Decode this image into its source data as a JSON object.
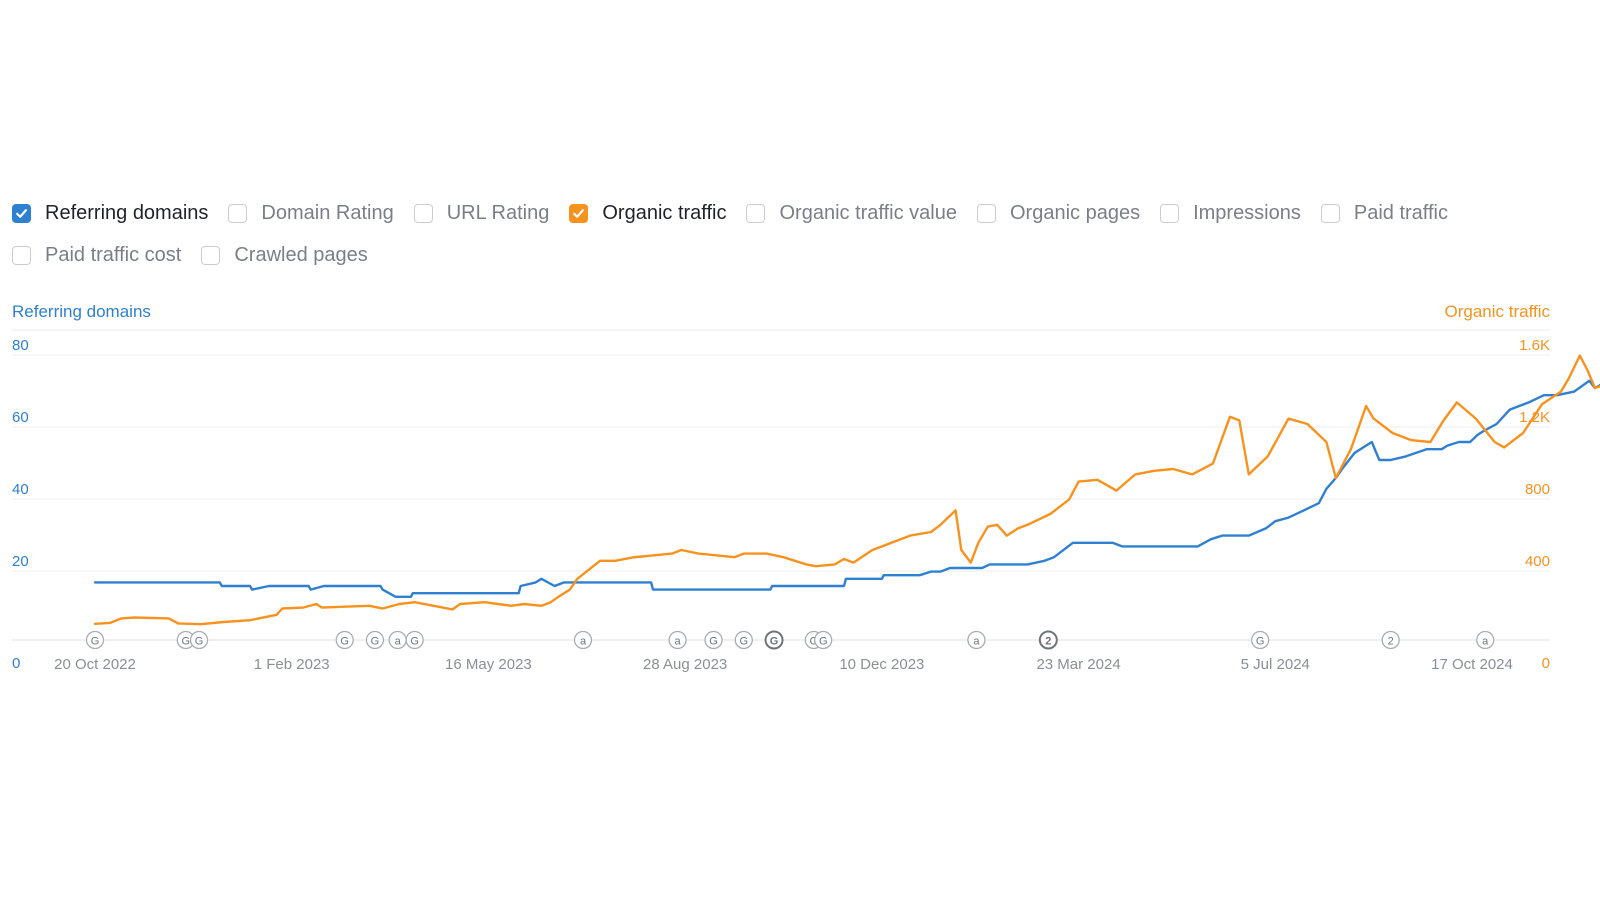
{
  "metric_toggles": [
    {
      "label": "Referring domains",
      "checked": true,
      "color": "#2f80d1"
    },
    {
      "label": "Domain Rating",
      "checked": false
    },
    {
      "label": "URL Rating",
      "checked": false
    },
    {
      "label": "Organic traffic",
      "checked": true,
      "color": "#f7921e"
    },
    {
      "label": "Organic traffic value",
      "checked": false
    },
    {
      "label": "Organic pages",
      "checked": false
    },
    {
      "label": "Impressions",
      "checked": false
    },
    {
      "label": "Paid traffic",
      "checked": false
    },
    {
      "label": "Paid traffic cost",
      "checked": false
    },
    {
      "label": "Crawled pages",
      "checked": false
    }
  ],
  "chart_data": {
    "type": "line",
    "x_labels": [
      "20 Oct 2022",
      "1 Feb 2023",
      "16 May 2023",
      "28 Aug 2023",
      "10 Dec 2023",
      "23 Mar 2024",
      "5 Jul 2024",
      "17 Oct 2024"
    ],
    "y_left": {
      "title": "Referring domains",
      "ticks": [
        "0",
        "20",
        "40",
        "60",
        "80"
      ],
      "range": [
        0,
        80
      ],
      "color": "#2f80d1"
    },
    "y_right": {
      "title": "Organic traffic",
      "ticks": [
        "0",
        "400",
        "800",
        "1.2K",
        "1.6K"
      ],
      "range": [
        0,
        1600
      ],
      "color": "#f7921e"
    },
    "grid": true,
    "series": [
      {
        "name": "Referring domains",
        "axis": "left",
        "color": "#2f80d1",
        "points": [
          [
            "2022-10-20",
            16
          ],
          [
            "2022-12-25",
            16
          ],
          [
            "2022-12-26",
            15
          ],
          [
            "2023-01-10",
            15
          ],
          [
            "2023-01-11",
            14
          ],
          [
            "2023-01-20",
            15
          ],
          [
            "2023-02-10",
            15
          ],
          [
            "2023-02-11",
            14
          ],
          [
            "2023-02-18",
            15
          ],
          [
            "2023-03-20",
            15
          ],
          [
            "2023-03-21",
            14
          ],
          [
            "2023-03-28",
            12
          ],
          [
            "2023-04-05",
            12
          ],
          [
            "2023-04-06",
            13
          ],
          [
            "2023-05-10",
            13
          ],
          [
            "2023-06-01",
            13
          ],
          [
            "2023-06-02",
            15
          ],
          [
            "2023-06-10",
            16
          ],
          [
            "2023-06-13",
            17
          ],
          [
            "2023-06-20",
            15
          ],
          [
            "2023-06-25",
            16
          ],
          [
            "2023-08-10",
            16
          ],
          [
            "2023-08-11",
            14
          ],
          [
            "2023-10-12",
            14
          ],
          [
            "2023-10-13",
            15
          ],
          [
            "2023-11-20",
            15
          ],
          [
            "2023-11-21",
            17
          ],
          [
            "2023-12-10",
            17
          ],
          [
            "2023-12-11",
            18
          ],
          [
            "2023-12-30",
            18
          ],
          [
            "2024-01-05",
            19
          ],
          [
            "2024-01-10",
            19
          ],
          [
            "2024-01-15",
            20
          ],
          [
            "2024-02-01",
            20
          ],
          [
            "2024-02-05",
            21
          ],
          [
            "2024-02-25",
            21
          ],
          [
            "2024-03-05",
            22
          ],
          [
            "2024-03-10",
            23
          ],
          [
            "2024-03-20",
            27
          ],
          [
            "2024-04-10",
            27
          ],
          [
            "2024-04-15",
            26
          ],
          [
            "2024-04-25",
            26
          ],
          [
            "2024-04-26",
            26
          ],
          [
            "2024-05-25",
            26
          ],
          [
            "2024-06-01",
            28
          ],
          [
            "2024-06-07",
            29
          ],
          [
            "2024-06-21",
            29
          ],
          [
            "2024-06-30",
            31
          ],
          [
            "2024-07-05",
            33
          ],
          [
            "2024-07-12",
            34
          ],
          [
            "2024-07-20",
            36
          ],
          [
            "2024-07-28",
            38
          ],
          [
            "2024-08-01",
            42
          ],
          [
            "2024-08-06",
            45
          ],
          [
            "2024-08-10",
            48
          ],
          [
            "2024-08-16",
            52
          ],
          [
            "2024-08-22",
            54
          ],
          [
            "2024-08-25",
            55
          ],
          [
            "2024-08-29",
            50
          ],
          [
            "2024-09-04",
            50
          ],
          [
            "2024-09-12",
            51
          ],
          [
            "2024-09-23",
            53
          ],
          [
            "2024-10-01",
            53
          ],
          [
            "2024-10-04",
            54
          ],
          [
            "2024-10-10",
            55
          ],
          [
            "2024-10-16",
            55
          ],
          [
            "2024-10-20",
            57
          ],
          [
            "2024-10-23",
            58
          ],
          [
            "2024-10-30",
            60
          ],
          [
            "2024-11-06",
            64
          ],
          [
            "2024-11-16",
            66
          ],
          [
            "2024-11-24",
            68
          ],
          [
            "2024-12-01",
            68
          ],
          [
            "2024-12-10",
            69
          ],
          [
            "2024-12-18",
            72
          ],
          [
            "2024-12-21",
            70
          ],
          [
            "2024-12-28",
            72
          ],
          [
            "2025-01-05",
            73
          ]
        ]
      },
      {
        "name": "Organic traffic",
        "axis": "right",
        "color": "#f7921e",
        "points": [
          [
            "2022-10-20",
            90
          ],
          [
            "2022-10-28",
            95
          ],
          [
            "2022-11-03",
            120
          ],
          [
            "2022-11-10",
            125
          ],
          [
            "2022-11-28",
            120
          ],
          [
            "2022-12-03",
            92
          ],
          [
            "2022-12-15",
            88
          ],
          [
            "2022-12-27",
            100
          ],
          [
            "2023-01-10",
            110
          ],
          [
            "2023-01-24",
            140
          ],
          [
            "2023-01-27",
            175
          ],
          [
            "2023-02-07",
            180
          ],
          [
            "2023-02-14",
            200
          ],
          [
            "2023-02-17",
            180
          ],
          [
            "2023-03-01",
            185
          ],
          [
            "2023-03-14",
            190
          ],
          [
            "2023-03-21",
            175
          ],
          [
            "2023-03-30",
            200
          ],
          [
            "2023-04-07",
            210
          ],
          [
            "2023-04-17",
            190
          ],
          [
            "2023-04-27",
            170
          ],
          [
            "2023-05-01",
            200
          ],
          [
            "2023-05-14",
            210
          ],
          [
            "2023-05-28",
            190
          ],
          [
            "2023-06-04",
            200
          ],
          [
            "2023-06-13",
            190
          ],
          [
            "2023-06-18",
            210
          ],
          [
            "2023-06-22",
            240
          ],
          [
            "2023-06-28",
            280
          ],
          [
            "2023-07-02",
            340
          ],
          [
            "2023-07-08",
            390
          ],
          [
            "2023-07-14",
            440
          ],
          [
            "2023-07-22",
            440
          ],
          [
            "2023-08-01",
            460
          ],
          [
            "2023-08-11",
            470
          ],
          [
            "2023-08-21",
            480
          ],
          [
            "2023-08-26",
            500
          ],
          [
            "2023-09-04",
            480
          ],
          [
            "2023-09-14",
            470
          ],
          [
            "2023-09-23",
            460
          ],
          [
            "2023-09-28",
            480
          ],
          [
            "2023-10-10",
            480
          ],
          [
            "2023-10-19",
            460
          ],
          [
            "2023-10-25",
            440
          ],
          [
            "2023-10-31",
            420
          ],
          [
            "2023-11-05",
            410
          ],
          [
            "2023-11-15",
            420
          ],
          [
            "2023-11-20",
            450
          ],
          [
            "2023-11-25",
            430
          ],
          [
            "2023-12-05",
            500
          ],
          [
            "2023-12-15",
            540
          ],
          [
            "2023-12-25",
            580
          ],
          [
            "2024-01-05",
            600
          ],
          [
            "2024-01-10",
            640
          ],
          [
            "2024-01-18",
            720
          ],
          [
            "2024-01-21",
            500
          ],
          [
            "2024-01-26",
            430
          ],
          [
            "2024-01-30",
            540
          ],
          [
            "2024-02-04",
            630
          ],
          [
            "2024-02-09",
            640
          ],
          [
            "2024-02-14",
            580
          ],
          [
            "2024-02-20",
            620
          ],
          [
            "2024-02-25",
            640
          ],
          [
            "2024-03-08",
            700
          ],
          [
            "2024-03-18",
            780
          ],
          [
            "2024-03-23",
            880
          ],
          [
            "2024-04-02",
            890
          ],
          [
            "2024-04-12",
            830
          ],
          [
            "2024-04-22",
            920
          ],
          [
            "2024-05-02",
            940
          ],
          [
            "2024-05-12",
            950
          ],
          [
            "2024-05-22",
            920
          ],
          [
            "2024-06-02",
            980
          ],
          [
            "2024-06-11",
            1240
          ],
          [
            "2024-06-16",
            1220
          ],
          [
            "2024-06-21",
            920
          ],
          [
            "2024-07-01",
            1020
          ],
          [
            "2024-07-12",
            1230
          ],
          [
            "2024-07-22",
            1200
          ],
          [
            "2024-08-01",
            1100
          ],
          [
            "2024-08-06",
            900
          ],
          [
            "2024-08-14",
            1060
          ],
          [
            "2024-08-22",
            1300
          ],
          [
            "2024-08-26",
            1230
          ],
          [
            "2024-09-05",
            1150
          ],
          [
            "2024-09-15",
            1110
          ],
          [
            "2024-09-25",
            1100
          ],
          [
            "2024-10-02",
            1220
          ],
          [
            "2024-10-09",
            1320
          ],
          [
            "2024-10-19",
            1230
          ],
          [
            "2024-10-29",
            1100
          ],
          [
            "2024-11-03",
            1070
          ],
          [
            "2024-11-13",
            1150
          ],
          [
            "2024-11-23",
            1310
          ],
          [
            "2024-12-03",
            1380
          ],
          [
            "2024-12-07",
            1450
          ],
          [
            "2024-12-13",
            1580
          ],
          [
            "2024-12-17",
            1500
          ],
          [
            "2024-12-21",
            1400
          ],
          [
            "2024-12-27",
            1420
          ],
          [
            "2025-01-03",
            1370
          ]
        ]
      }
    ],
    "event_markers": [
      {
        "date": "2022-10-20",
        "label": "G",
        "bold": false
      },
      {
        "date": "2022-12-07",
        "label": "G",
        "bold": false
      },
      {
        "date": "2022-12-14",
        "label": "G",
        "bold": false
      },
      {
        "date": "2023-03-01",
        "label": "G",
        "bold": false
      },
      {
        "date": "2023-03-17",
        "label": "G",
        "bold": false
      },
      {
        "date": "2023-03-29",
        "label": "a",
        "bold": false
      },
      {
        "date": "2023-04-07",
        "label": "G",
        "bold": false
      },
      {
        "date": "2023-07-05",
        "label": "a",
        "bold": false
      },
      {
        "date": "2023-08-24",
        "label": "a",
        "bold": false
      },
      {
        "date": "2023-09-12",
        "label": "G",
        "bold": false
      },
      {
        "date": "2023-09-28",
        "label": "G",
        "bold": false
      },
      {
        "date": "2023-10-14",
        "label": "G",
        "bold": true
      },
      {
        "date": "2023-11-04",
        "label": "G",
        "bold": false
      },
      {
        "date": "2023-11-09",
        "label": "G",
        "bold": false
      },
      {
        "date": "2024-01-29",
        "label": "a",
        "bold": false
      },
      {
        "date": "2024-03-07",
        "label": "2",
        "bold": true
      },
      {
        "date": "2024-06-27",
        "label": "G",
        "bold": false
      },
      {
        "date": "2024-09-04",
        "label": "2",
        "bold": false
      },
      {
        "date": "2024-10-24",
        "label": "a",
        "bold": false
      }
    ]
  }
}
